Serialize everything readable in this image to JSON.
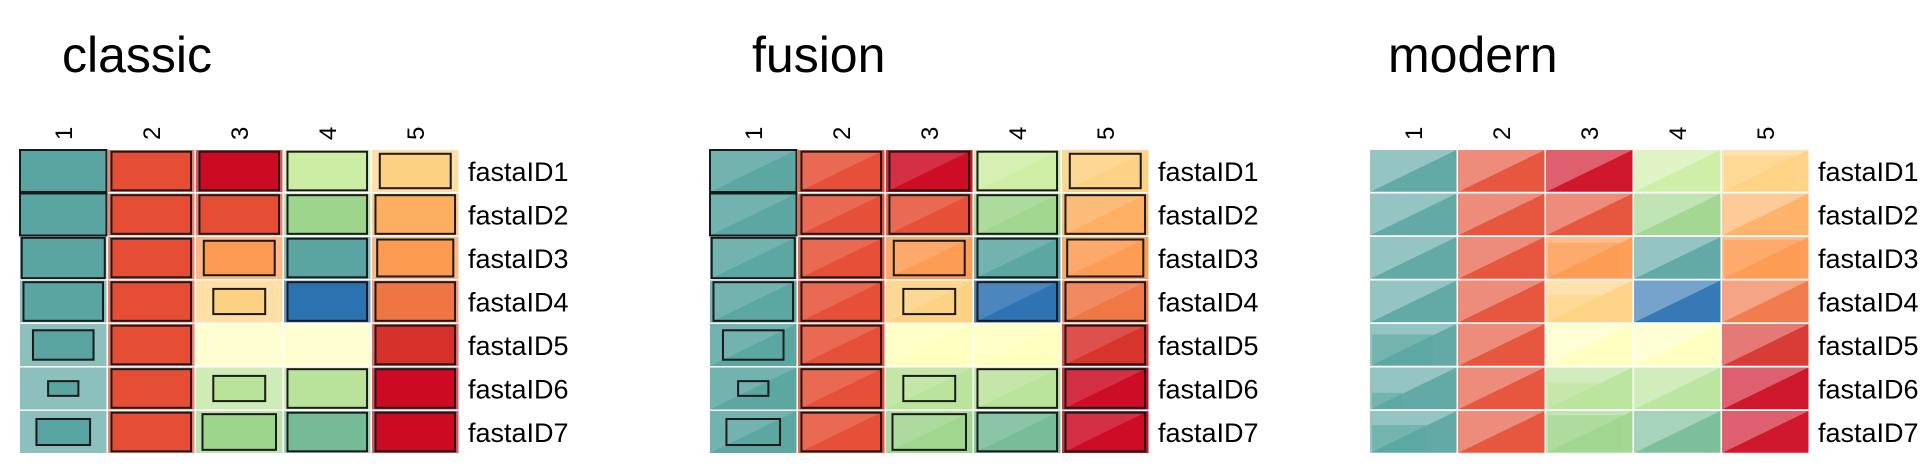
{
  "panels": [
    {
      "key": "classic",
      "title": "classic"
    },
    {
      "key": "fusion",
      "title": "fusion"
    },
    {
      "key": "modern",
      "title": "modern"
    }
  ],
  "columns": [
    "1",
    "2",
    "3",
    "4",
    "5"
  ],
  "rows": [
    "fastaID1",
    "fastaID2",
    "fastaID3",
    "fastaID4",
    "fastaID5",
    "fastaID6",
    "fastaID7"
  ],
  "colors": {
    "teal": "#5aa5a1",
    "red_orange": "#e54e35",
    "dark_red": "#cc0a22",
    "light_green": "#cdeda4",
    "light_orange": "#fdd182",
    "mid_green": "#9ed58c",
    "orange": "#fdaf61",
    "orange2": "#fd9a51",
    "blue": "#2b72b0",
    "coral": "#f07545",
    "pale_yellow": "#ffffbe",
    "red": "#d7312b",
    "pale_green": "#b9e39a",
    "green2": "#76bb98"
  },
  "cells": [
    [
      {
        "bg": "teal",
        "fg": "teal",
        "scale": 1.0
      },
      {
        "bg": "red_orange",
        "fg": "red_orange",
        "scale": 0.92
      },
      {
        "bg": "dark_red",
        "fg": "dark_red",
        "scale": 0.92
      },
      {
        "bg": "light_green",
        "fg": "light_green",
        "scale": 0.92
      },
      {
        "bg": "light_orange",
        "fg": "light_orange",
        "scale": 0.82
      }
    ],
    [
      {
        "bg": "teal",
        "fg": "teal",
        "scale": 1.0
      },
      {
        "bg": "red_orange",
        "fg": "red_orange",
        "scale": 0.92
      },
      {
        "bg": "red_orange",
        "fg": "red_orange",
        "scale": 0.92
      },
      {
        "bg": "mid_green",
        "fg": "mid_green",
        "scale": 0.92
      },
      {
        "bg": "orange",
        "fg": "orange",
        "scale": 0.92
      }
    ],
    [
      {
        "bg": "teal",
        "fg": "teal",
        "scale": 0.96
      },
      {
        "bg": "red_orange",
        "fg": "red_orange",
        "scale": 0.92
      },
      {
        "bg": "orange2",
        "fg": "orange2",
        "scale": 0.82
      },
      {
        "bg": "teal",
        "fg": "teal",
        "scale": 0.92
      },
      {
        "bg": "orange2",
        "fg": "orange2",
        "scale": 0.88
      }
    ],
    [
      {
        "bg": "teal",
        "fg": "teal",
        "scale": 0.92
      },
      {
        "bg": "red_orange",
        "fg": "red_orange",
        "scale": 0.92
      },
      {
        "bg": "light_orange",
        "fg": "light_orange",
        "scale": 0.6
      },
      {
        "bg": "blue",
        "fg": "blue",
        "scale": 0.92
      },
      {
        "bg": "coral",
        "fg": "coral",
        "scale": 0.92
      }
    ],
    [
      {
        "bg": "teal",
        "fg": "teal",
        "scale": 0.7
      },
      {
        "bg": "red_orange",
        "fg": "red_orange",
        "scale": 0.92
      },
      {
        "bg": "pale_yellow",
        "fg": "pale_yellow",
        "scale": 0
      },
      {
        "bg": "pale_yellow",
        "fg": "pale_yellow",
        "scale": 0
      },
      {
        "bg": "red",
        "fg": "red",
        "scale": 0.92
      }
    ],
    [
      {
        "bg": "teal",
        "fg": "teal",
        "scale": 0.35
      },
      {
        "bg": "red_orange",
        "fg": "red_orange",
        "scale": 0.92
      },
      {
        "bg": "pale_green",
        "fg": "pale_green",
        "scale": 0.6
      },
      {
        "bg": "pale_green",
        "fg": "pale_green",
        "scale": 0.92
      },
      {
        "bg": "dark_red",
        "fg": "dark_red",
        "scale": 0.92
      }
    ],
    [
      {
        "bg": "teal",
        "fg": "teal",
        "scale": 0.62
      },
      {
        "bg": "red_orange",
        "fg": "red_orange",
        "scale": 0.92
      },
      {
        "bg": "mid_green",
        "fg": "mid_green",
        "scale": 0.85
      },
      {
        "bg": "green2",
        "fg": "green2",
        "scale": 0.92
      },
      {
        "bg": "dark_red",
        "fg": "dark_red",
        "scale": 0.92
      }
    ]
  ]
}
